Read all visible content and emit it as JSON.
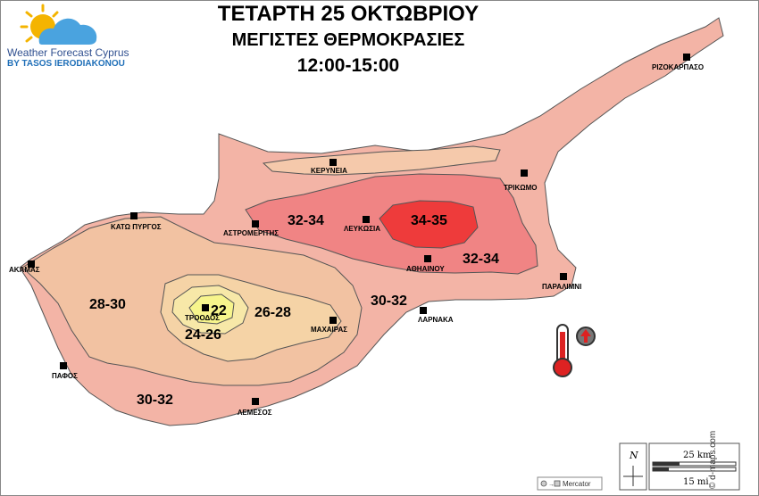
{
  "title": {
    "line1": "ΤΕΤΑΡΤΗ 25 ΟΚΤΩΒΡΙΟΥ",
    "line2": "ΜΕΓΙΣΤΕΣ ΘΕΡΜΟΚΡΑΣΙΕΣ",
    "line3": "12:00-15:00"
  },
  "brand": {
    "name": "Weather Forecast Cyprus",
    "byline": "BY TASOS IERODIAKONOU"
  },
  "zones": {
    "z1": "32-34",
    "z2": "34-35",
    "z3": "32-34",
    "z4": "30-32",
    "z5": "28-30",
    "z6": "26-28",
    "z7": "22",
    "z8": "24-26",
    "z9": "30-32"
  },
  "cities": {
    "rizokarpaso": "ΡΙΖΟΚΑΡΠΑΣΟ",
    "kyrenia": "ΚΕΡΥΝΕΙΑ",
    "trikomo": "ΤΡΙΚΩΜΟ",
    "kato_pyrgos": "ΚΑΤΩ ΠΥΡΓΟΣ",
    "astromeritis": "ΑΣΤΡΟΜΕΡΙΤΗΣ",
    "nicosia": "ΛΕΥΚΩΣΙΑ",
    "akamas": "ΑΚΑΜΑΣ",
    "athienou": "ΑΘΗΑΙΝΟΥ",
    "paralimni": "ΠΑΡΑΛΙΜΝΙ",
    "troodos": "ΤΡΟΟΔΟΣ",
    "larnaca": "ΛΑΡΝΑΚΑ",
    "machairas": "ΜΑΧΑΙΡΑΣ",
    "paphos": "ΠΑΦΟΣ",
    "limassol": "ΛΕΜΕΣΟΣ"
  },
  "scale": {
    "north": "N",
    "km": "25 km",
    "mi": "15 mi",
    "projection": "Mercator"
  },
  "credit": "© d-maps.com",
  "colors": {
    "z_30_32": "#f3b4a6",
    "z_28_30": "#f2c2a2",
    "z_26_28": "#f5d3a6",
    "z_24_26": "#f7e8a8",
    "z_22": "#f7f58c",
    "z_32_34": "#f08484",
    "z_34_35": "#ee3b3b"
  },
  "icons": {
    "logo": "sun-cloud-icon",
    "thermometer": "thermometer-icon",
    "trend": "up-arrow-icon"
  }
}
